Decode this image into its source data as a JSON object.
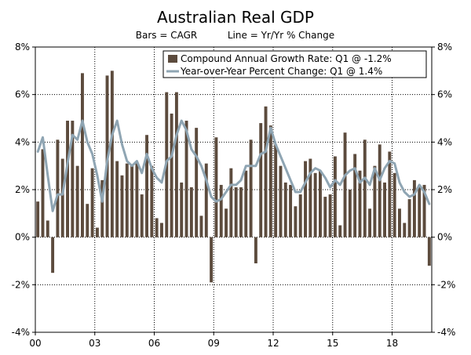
{
  "chart_data": {
    "type": "bar",
    "title": "Australian Real GDP",
    "subtitle_bars": "Bars = CAGR",
    "subtitle_line": "Line = Yr/Yr % Change",
    "ylim": [
      -4,
      8
    ],
    "y_ticks": [
      -4,
      -2,
      0,
      2,
      4,
      6,
      8
    ],
    "y_tick_labels": [
      "-4%",
      "-2%",
      "0%",
      "2%",
      "4%",
      "6%",
      "8%"
    ],
    "x_tick_labels": [
      "00",
      "03",
      "06",
      "09",
      "12",
      "15",
      "18"
    ],
    "x_tick_positions": [
      0,
      12,
      24,
      36,
      48,
      60,
      72
    ],
    "grid": true,
    "legend_position": "top-right",
    "series": [
      {
        "name": "Compound Annual Growth Rate: Q1 @ -1.2%",
        "type": "bar",
        "color": "#5c4b3d",
        "values": [
          1.5,
          3.7,
          0.7,
          -1.5,
          4.1,
          3.3,
          4.9,
          4.9,
          3.0,
          6.9,
          1.4,
          2.9,
          0.4,
          2.4,
          6.8,
          7.0,
          3.2,
          2.6,
          3.1,
          3.0,
          3.1,
          1.8,
          4.3,
          3.0,
          0.8,
          0.6,
          6.1,
          5.2,
          6.1,
          2.3,
          4.9,
          2.1,
          4.6,
          0.9,
          3.1,
          -1.9,
          4.2,
          2.2,
          1.2,
          2.9,
          2.1,
          2.1,
          2.8,
          4.1,
          -1.1,
          4.8,
          5.5,
          4.7,
          3.9,
          3.0,
          2.3,
          2.2,
          1.3,
          1.8,
          3.2,
          3.3,
          2.7,
          2.8,
          1.7,
          1.8,
          3.4,
          0.5,
          4.4,
          2.0,
          3.5,
          2.8,
          4.1,
          1.2,
          3.0,
          3.9,
          2.3,
          3.6,
          2.7,
          1.2,
          0.6,
          1.6,
          2.4,
          2.2,
          2.2,
          -1.2
        ]
      },
      {
        "name": "Year-over-Year Percent Change: Q1 @ 1.4%",
        "type": "line",
        "color": "#8fa5b3",
        "values": [
          3.6,
          4.2,
          2.6,
          1.1,
          1.8,
          1.8,
          3.1,
          4.3,
          4.1,
          4.9,
          4.0,
          3.5,
          2.6,
          1.5,
          3.2,
          4.3,
          4.9,
          3.9,
          3.2,
          3.0,
          3.2,
          2.7,
          3.5,
          2.9,
          2.5,
          2.3,
          3.2,
          3.4,
          4.3,
          4.9,
          4.5,
          3.7,
          3.4,
          3.0,
          2.4,
          1.7,
          1.5,
          1.6,
          1.9,
          2.2,
          2.2,
          2.4,
          3.0,
          3.0,
          3.0,
          3.5,
          3.6,
          4.6,
          3.9,
          3.4,
          2.9,
          2.4,
          1.9,
          1.9,
          2.3,
          2.7,
          2.9,
          2.8,
          2.5,
          2.1,
          2.4,
          2.2,
          2.6,
          2.8,
          2.9,
          2.3,
          2.5,
          2.2,
          2.9,
          2.4,
          2.9,
          3.2,
          3.1,
          2.3,
          1.9,
          1.7,
          1.8,
          2.2,
          1.9,
          1.4
        ]
      }
    ]
  }
}
